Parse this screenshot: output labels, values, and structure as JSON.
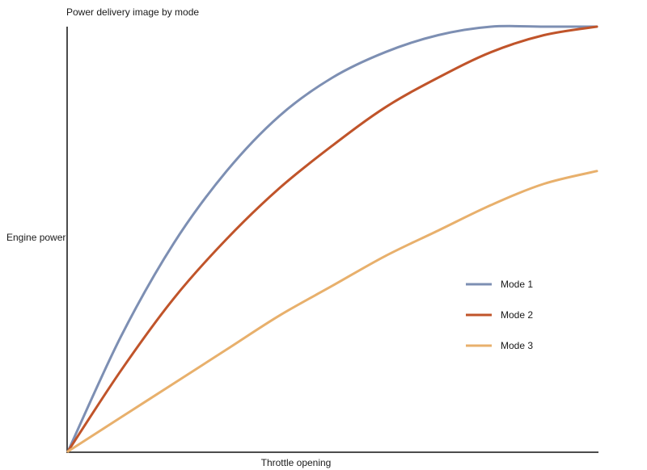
{
  "chart_data": {
    "type": "line",
    "title": "Power delivery image by mode",
    "xlabel": "Throttle opening",
    "ylabel": "Engine power",
    "xlim": [
      0,
      100
    ],
    "ylim": [
      0,
      100
    ],
    "grid": false,
    "legend_position": "right",
    "series": [
      {
        "name": "Mode 1",
        "color": "#7d8fb3",
        "x": [
          0,
          10,
          20,
          30,
          40,
          50,
          60,
          70,
          80,
          90,
          100
        ],
        "y": [
          0,
          27,
          49,
          66,
          79,
          88,
          94,
          98,
          100,
          100,
          100
        ]
      },
      {
        "name": "Mode 2",
        "color": "#c0542a",
        "x": [
          0,
          10,
          20,
          30,
          40,
          50,
          60,
          70,
          80,
          90,
          100
        ],
        "y": [
          0,
          19,
          36,
          50,
          62,
          72,
          81,
          88,
          94,
          98,
          100
        ]
      },
      {
        "name": "Mode 3",
        "color": "#e8b06c",
        "x": [
          0,
          10,
          20,
          30,
          40,
          50,
          60,
          70,
          80,
          90,
          100
        ],
        "y": [
          0,
          8,
          16,
          24,
          32,
          39,
          46,
          52,
          58,
          63,
          66
        ]
      }
    ]
  }
}
